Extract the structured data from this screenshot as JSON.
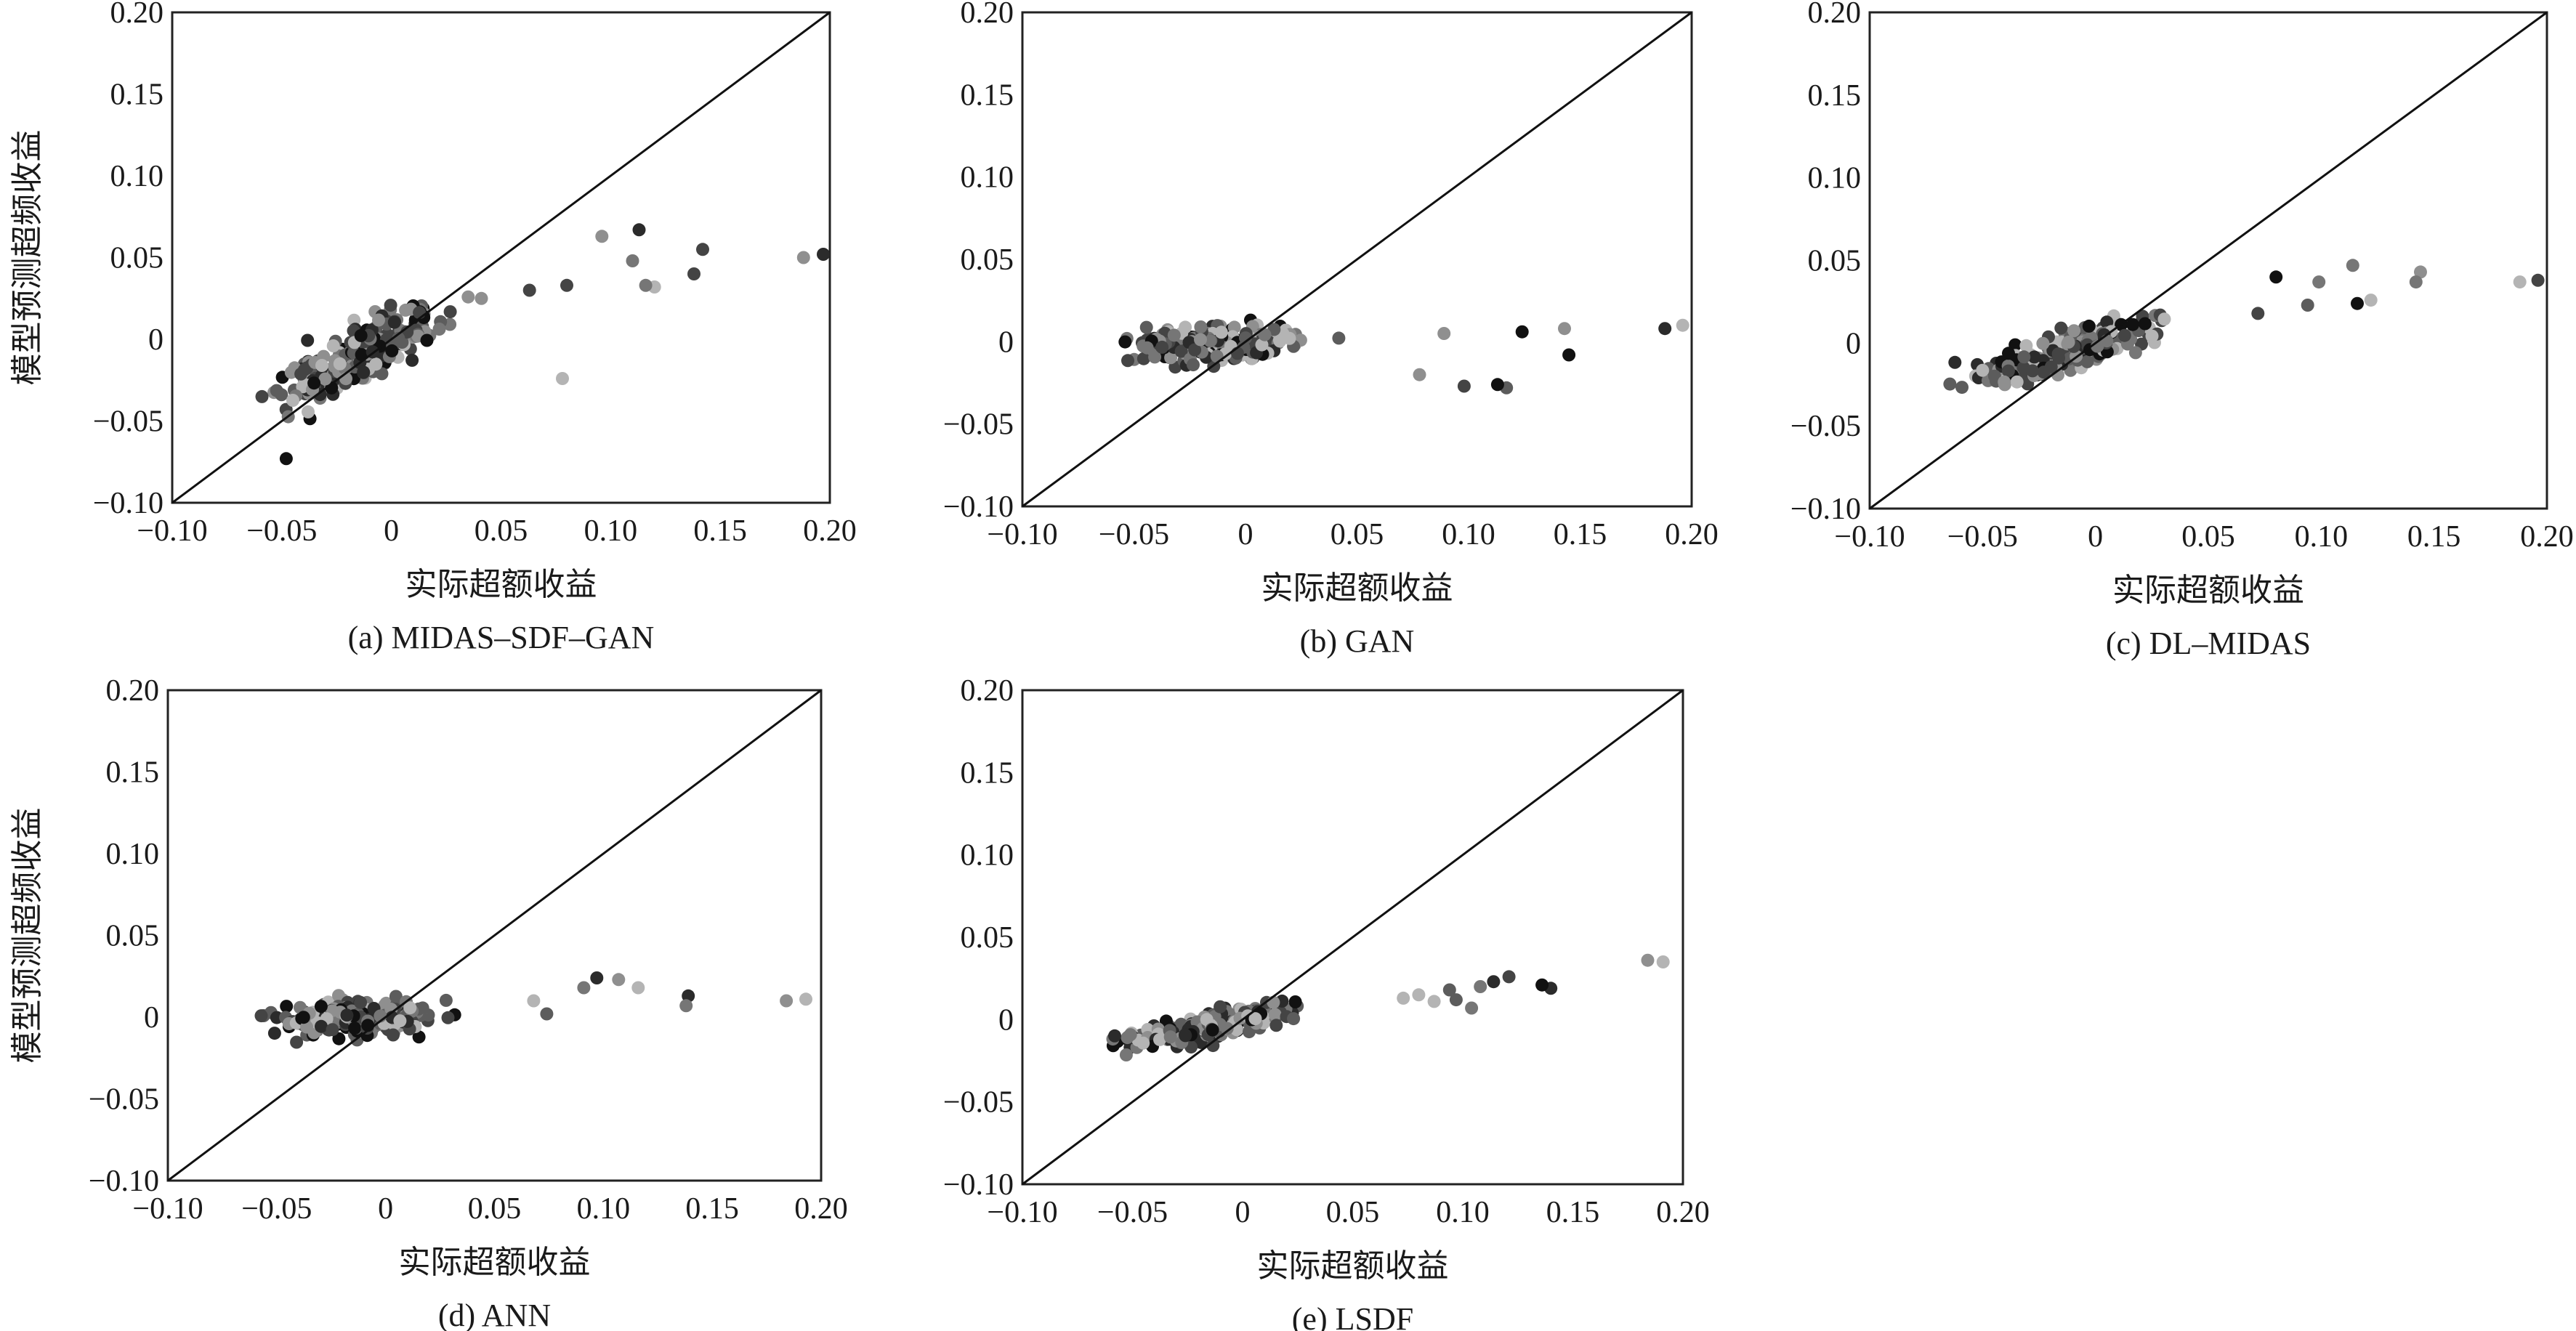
{
  "chart_data": [
    {
      "type": "scatter",
      "caption": "(a) MIDAS-SDF-GAN",
      "xlabel": "实际超额收益",
      "ylabel": "模型预测超频收益",
      "xlim": [
        -0.1,
        0.2
      ],
      "ylim": [
        -0.1,
        0.2
      ],
      "x_ticks": [
        "-0.10",
        "-0.05",
        "0",
        "0.05",
        "0.10",
        "0.15",
        "0.20"
      ],
      "y_ticks": [
        "-0.10",
        "-0.05",
        "0",
        "0.05",
        "0.10",
        "0.15",
        "0.20"
      ],
      "reference_line": "y = x",
      "grid": false,
      "mode": "strong",
      "highlight_points": [
        {
          "x": 0.188,
          "y": 0.05
        },
        {
          "x": 0.197,
          "y": 0.052
        },
        {
          "x": 0.142,
          "y": 0.055
        },
        {
          "x": 0.138,
          "y": 0.04
        },
        {
          "x": 0.12,
          "y": 0.032
        },
        {
          "x": 0.116,
          "y": 0.033
        },
        {
          "x": 0.113,
          "y": 0.067
        },
        {
          "x": 0.11,
          "y": 0.048
        },
        {
          "x": 0.096,
          "y": 0.063
        },
        {
          "x": 0.078,
          "y": -0.024
        },
        {
          "x": 0.08,
          "y": 0.033
        },
        {
          "x": 0.063,
          "y": 0.03
        },
        {
          "x": -0.048,
          "y": -0.073
        }
      ]
    },
    {
      "type": "scatter",
      "caption": "(b) GAN",
      "xlabel": "实际超额收益",
      "ylabel": "",
      "xlim": [
        -0.1,
        0.2
      ],
      "ylim": [
        -0.1,
        0.2
      ],
      "x_ticks": [
        "-0.10",
        "-0.05",
        "0",
        "0.05",
        "0.10",
        "0.15",
        "0.20"
      ],
      "y_ticks": [
        "-0.10",
        "-0.05",
        "0",
        "0.05",
        "0.10",
        "0.15",
        "0.20"
      ],
      "reference_line": "y = x",
      "grid": false,
      "mode": "flat",
      "highlight_points": [
        {
          "x": 0.188,
          "y": 0.008
        },
        {
          "x": 0.196,
          "y": 0.01
        },
        {
          "x": 0.145,
          "y": -0.008
        },
        {
          "x": 0.143,
          "y": 0.008
        },
        {
          "x": 0.124,
          "y": 0.006
        },
        {
          "x": 0.117,
          "y": -0.028
        },
        {
          "x": 0.113,
          "y": -0.026
        },
        {
          "x": 0.098,
          "y": -0.027
        },
        {
          "x": 0.078,
          "y": -0.02
        },
        {
          "x": 0.089,
          "y": 0.005
        }
      ]
    },
    {
      "type": "scatter",
      "caption": "(c) DL-MIDAS",
      "xlabel": "实际超额收益",
      "ylabel": "",
      "xlim": [
        -0.1,
        0.2
      ],
      "ylim": [
        -0.1,
        0.2
      ],
      "x_ticks": [
        "-0.10",
        "-0.05",
        "0",
        "0.05",
        "0.10",
        "0.15",
        "0.20"
      ],
      "y_ticks": [
        "-0.10",
        "-0.05",
        "0",
        "0.05",
        "0.10",
        "0.15",
        "0.20"
      ],
      "reference_line": "y = x",
      "grid": false,
      "mode": "medium",
      "highlight_points": [
        {
          "x": 0.188,
          "y": 0.037
        },
        {
          "x": 0.196,
          "y": 0.038
        },
        {
          "x": 0.144,
          "y": 0.043
        },
        {
          "x": 0.142,
          "y": 0.037
        },
        {
          "x": 0.122,
          "y": 0.026
        },
        {
          "x": 0.116,
          "y": 0.024
        },
        {
          "x": 0.114,
          "y": 0.047
        },
        {
          "x": 0.099,
          "y": 0.037
        },
        {
          "x": 0.094,
          "y": 0.023
        },
        {
          "x": 0.08,
          "y": 0.04
        },
        {
          "x": 0.072,
          "y": 0.018
        }
      ]
    },
    {
      "type": "scatter",
      "caption": "(d) ANN",
      "xlabel": "实际超额收益",
      "ylabel": "模型预测超频收益",
      "xlim": [
        -0.1,
        0.2
      ],
      "ylim": [
        -0.1,
        0.2
      ],
      "x_ticks": [
        "-0.10",
        "-0.05",
        "0",
        "0.05",
        "0.10",
        "0.15",
        "0.20"
      ],
      "y_ticks": [
        "-0.10",
        "-0.05",
        "0",
        "0.05",
        "0.10",
        "0.15",
        "0.20"
      ],
      "reference_line": "y = x",
      "grid": false,
      "mode": "flat",
      "highlight_points": [
        {
          "x": 0.184,
          "y": 0.01
        },
        {
          "x": 0.193,
          "y": 0.011
        },
        {
          "x": 0.139,
          "y": 0.013
        },
        {
          "x": 0.138,
          "y": 0.007
        },
        {
          "x": 0.116,
          "y": 0.018
        },
        {
          "x": 0.107,
          "y": 0.023
        },
        {
          "x": 0.097,
          "y": 0.024
        },
        {
          "x": 0.091,
          "y": 0.018
        },
        {
          "x": 0.074,
          "y": 0.002
        },
        {
          "x": 0.068,
          "y": 0.01
        }
      ]
    },
    {
      "type": "scatter",
      "caption": "(e) LSDF",
      "xlabel": "实际超额收益",
      "ylabel": "",
      "xlim": [
        -0.1,
        0.2
      ],
      "ylim": [
        -0.1,
        0.2
      ],
      "x_ticks": [
        "-0.10",
        "-0.05",
        "0",
        "0.05",
        "0.10",
        "0.15",
        "0.20"
      ],
      "y_ticks": [
        "-0.10",
        "-0.05",
        "0",
        "0.05",
        "0.10",
        "0.15",
        "0.20"
      ],
      "reference_line": "y = x",
      "grid": false,
      "mode": "weak",
      "highlight_points": [
        {
          "x": 0.184,
          "y": 0.036
        },
        {
          "x": 0.191,
          "y": 0.035
        },
        {
          "x": 0.14,
          "y": 0.019
        },
        {
          "x": 0.136,
          "y": 0.021
        },
        {
          "x": 0.121,
          "y": 0.026
        },
        {
          "x": 0.114,
          "y": 0.023
        },
        {
          "x": 0.108,
          "y": 0.02
        },
        {
          "x": 0.104,
          "y": 0.007
        },
        {
          "x": 0.097,
          "y": 0.012
        },
        {
          "x": 0.094,
          "y": 0.018
        },
        {
          "x": 0.087,
          "y": 0.011
        },
        {
          "x": 0.08,
          "y": 0.015
        },
        {
          "x": 0.073,
          "y": 0.013
        }
      ]
    }
  ],
  "palette": [
    "#111111",
    "#2b2b2b",
    "#444444",
    "#5c5c5c",
    "#767676",
    "#8f8f8f",
    "#b4b4b4"
  ]
}
